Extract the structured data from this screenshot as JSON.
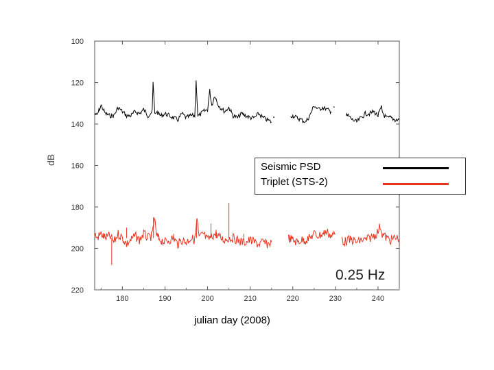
{
  "chart_data": {
    "type": "line",
    "title": "",
    "xlabel": "julian day (2008)",
    "ylabel": "dB",
    "xlim": [
      173.5,
      245
    ],
    "ylim": [
      220,
      100
    ],
    "y_inverted": true,
    "xticks": [
      180,
      190,
      200,
      210,
      220,
      230,
      240
    ],
    "yticks": [
      100,
      120,
      140,
      160,
      180,
      200,
      220
    ],
    "annotation": "0.25 Hz",
    "legend": {
      "title": "Seismic PSD",
      "position": "center-right"
    },
    "series": [
      {
        "name": "Seismic PSD",
        "color": "#000000",
        "segments": [
          [
            [
              173.5,
              135
            ],
            [
              174,
              136
            ],
            [
              175,
              131
            ],
            [
              176,
              135
            ],
            [
              177,
              136
            ],
            [
              178,
              136
            ],
            [
              179,
              132
            ],
            [
              180,
              134
            ],
            [
              181,
              136
            ],
            [
              182,
              136
            ],
            [
              183,
              134
            ],
            [
              184,
              135
            ],
            [
              185,
              133
            ],
            [
              186,
              136
            ],
            [
              187,
              134
            ],
            [
              187.2,
              120
            ],
            [
              187.6,
              135
            ],
            [
              188,
              134
            ],
            [
              189,
              136
            ],
            [
              190,
              135
            ],
            [
              191,
              136
            ],
            [
              192,
              137
            ],
            [
              193,
              138
            ],
            [
              194,
              135
            ],
            [
              195,
              137
            ],
            [
              196,
              136
            ],
            [
              197,
              136
            ],
            [
              197.3,
              118
            ],
            [
              197.7,
              136
            ],
            [
              198,
              136
            ],
            [
              199,
              134
            ],
            [
              200,
              133
            ],
            [
              200.5,
              124
            ],
            [
              201,
              131
            ],
            [
              201.7,
              126
            ],
            [
              202.3,
              130
            ],
            [
              203,
              132
            ],
            [
              204,
              134
            ],
            [
              205,
              132
            ],
            [
              206,
              136
            ],
            [
              207,
              137
            ],
            [
              208,
              135
            ],
            [
              209,
              136
            ],
            [
              210,
              137
            ],
            [
              211,
              137
            ],
            [
              212,
              135
            ],
            [
              213,
              137
            ],
            [
              214,
              138
            ],
            [
              215,
              139
            ]
          ],
          [
            [
              215.5,
              137
            ],
            [
              215.6,
              137
            ]
          ],
          [
            [
              219.5,
              136
            ],
            [
              220,
              136
            ],
            [
              221,
              137
            ],
            [
              222,
              138
            ],
            [
              223,
              139
            ],
            [
              224,
              136
            ],
            [
              225,
              131
            ],
            [
              226,
              133
            ],
            [
              227,
              132
            ],
            [
              228,
              133
            ],
            [
              229,
              134
            ]
          ],
          [
            [
              229.5,
              131
            ],
            [
              229.8,
              132
            ]
          ],
          [
            [
              232.5,
              136
            ],
            [
              233,
              136
            ],
            [
              234,
              138
            ],
            [
              235,
              139
            ],
            [
              236,
              137
            ],
            [
              237,
              135
            ],
            [
              238,
              135
            ],
            [
              239,
              134
            ],
            [
              240,
              136
            ],
            [
              240.8,
              132
            ],
            [
              241,
              134
            ],
            [
              241.5,
              136
            ],
            [
              242,
              137
            ],
            [
              243,
              137
            ],
            [
              244,
              138
            ],
            [
              245,
              138
            ]
          ]
        ]
      },
      {
        "name": "Triplet (STS-2)",
        "color": "#e8321e",
        "segments": [
          [
            [
              173.5,
              193
            ],
            [
              174,
              195
            ],
            [
              175,
              193
            ],
            [
              176,
              195
            ],
            [
              177,
              194
            ],
            [
              178,
              197
            ],
            [
              179,
              193
            ],
            [
              180,
              195
            ],
            [
              181,
              198
            ],
            [
              182,
              196
            ],
            [
              183,
              194
            ],
            [
              184,
              196
            ],
            [
              185,
              193
            ],
            [
              186,
              195
            ],
            [
              187,
              194
            ],
            [
              187.5,
              185
            ],
            [
              188,
              194
            ],
            [
              189,
              196
            ],
            [
              190,
              197
            ],
            [
              191,
              196
            ],
            [
              192,
              195
            ],
            [
              193,
              198
            ],
            [
              194,
              196
            ],
            [
              195,
              197
            ],
            [
              196,
              195
            ],
            [
              197,
              196
            ],
            [
              197.5,
              186
            ],
            [
              198,
              195
            ],
            [
              199,
              193
            ],
            [
              200,
              196
            ],
            [
              201,
              194
            ],
            [
              202,
              193
            ],
            [
              203,
              195
            ],
            [
              204,
              196
            ],
            [
              205,
              195
            ],
            [
              206,
              195
            ],
            [
              207,
              196
            ],
            [
              208,
              197
            ],
            [
              209,
              197
            ],
            [
              210,
              196
            ],
            [
              211,
              197
            ],
            [
              212,
              198
            ],
            [
              213,
              197
            ],
            [
              214,
              198
            ],
            [
              215,
              197
            ]
          ],
          [
            [
              219,
              195
            ],
            [
              220,
              196
            ],
            [
              221,
              197
            ],
            [
              222,
              196
            ],
            [
              223,
              196
            ],
            [
              224,
              195
            ],
            [
              225,
              193
            ],
            [
              226,
              194
            ],
            [
              227,
              193
            ],
            [
              228,
              192
            ],
            [
              229,
              194
            ],
            [
              230,
              193
            ]
          ],
          [
            [
              231.5,
              195
            ],
            [
              232,
              197
            ],
            [
              233,
              196
            ],
            [
              234,
              196
            ],
            [
              235,
              197
            ],
            [
              236,
              196
            ],
            [
              237,
              196
            ],
            [
              238,
              195
            ],
            [
              239,
              194
            ],
            [
              240,
              192
            ],
            [
              240.5,
              189
            ],
            [
              241,
              193
            ],
            [
              242,
              195
            ],
            [
              243,
              196
            ],
            [
              244,
              195
            ],
            [
              245,
              195
            ]
          ]
        ],
        "spikes": [
          [
            175.5,
            193
          ],
          [
            177.5,
            208
          ],
          [
            181,
            190
          ],
          [
            187.3,
            185
          ],
          [
            188.5,
            196
          ],
          [
            192,
            193
          ],
          [
            197.4,
            187
          ],
          [
            200.8,
            188
          ],
          [
            202,
            191
          ],
          [
            205,
            178
          ],
          [
            208.5,
            193
          ],
          [
            212,
            195
          ]
        ]
      }
    ]
  }
}
